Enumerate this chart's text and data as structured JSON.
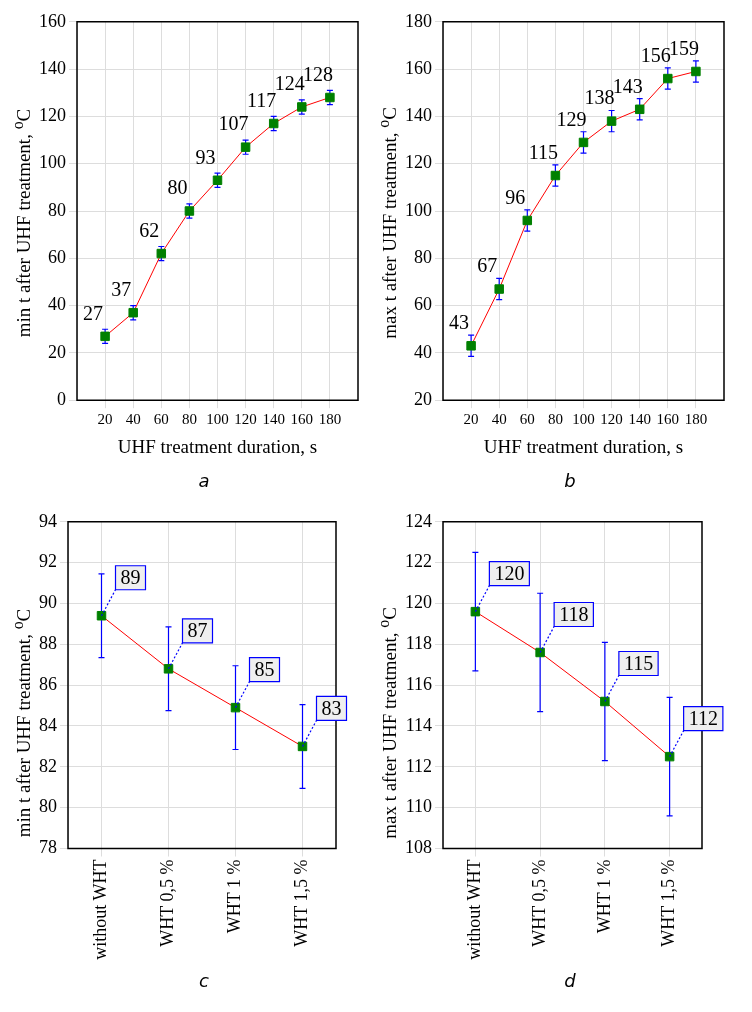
{
  "chart_data": [
    {
      "type": "line",
      "xlabel": "UHF treatment duration, s",
      "ylabel": "min t after UHF treatment, $^{o}$C",
      "annotations": [
        "a"
      ],
      "x": [
        20,
        40,
        60,
        80,
        100,
        120,
        140,
        160,
        180
      ],
      "xlim": [
        0,
        200
      ],
      "xticks": [
        20,
        40,
        60,
        80,
        100,
        120,
        140,
        160,
        180
      ],
      "ylim": [
        0,
        160
      ],
      "yticks": [
        0,
        20,
        40,
        60,
        80,
        100,
        120,
        140,
        160
      ],
      "grid": true,
      "marker": "square",
      "data_labels": true,
      "series": [
        {
          "color": "#ff0000",
          "colors": [
            "#008000",
            "#008000",
            "#008000",
            "#008000",
            "#008000",
            "#008000",
            "#008000",
            "#008000",
            "#008000"
          ],
          "values": [
            27,
            37,
            62,
            80,
            93,
            107,
            117,
            124,
            128
          ],
          "errors": [
            3,
            3,
            3,
            3,
            3,
            3,
            3,
            3,
            3
          ]
        }
      ]
    },
    {
      "type": "line",
      "xlabel": "UHF treatment duration, s",
      "ylabel": "max t after UHF treatment, $^{o}$C",
      "annotations": [
        "b"
      ],
      "x": [
        20,
        40,
        60,
        80,
        100,
        120,
        140,
        160,
        180
      ],
      "xlim": [
        0,
        200
      ],
      "xticks": [
        20,
        40,
        60,
        80,
        100,
        120,
        140,
        160,
        180
      ],
      "ylim": [
        20,
        180
      ],
      "yticks": [
        20,
        40,
        60,
        80,
        100,
        120,
        140,
        160,
        180
      ],
      "grid": true,
      "marker": "square",
      "data_labels": true,
      "series": [
        {
          "color": "#ff0000",
          "colors": [
            "#008000",
            "#008000",
            "#008000",
            "#008000",
            "#008000",
            "#008000",
            "#008000",
            "#008000",
            "#008000"
          ],
          "values": [
            43,
            67,
            96,
            115,
            129,
            138,
            143,
            156,
            159
          ],
          "errors": [
            4.5,
            4.5,
            4.5,
            4.5,
            4.5,
            4.5,
            4.5,
            4.5,
            4.5
          ]
        }
      ]
    },
    {
      "type": "line",
      "ylabel": "min t after UHF treatment, $^{o}$C",
      "annotations": [
        "c"
      ],
      "categories": [
        "without WHT",
        "WHT 0,5 %",
        "WHT 1 %",
        "WHT 1,5 %"
      ],
      "ylim": [
        78,
        94
      ],
      "yticks": [
        78,
        80,
        82,
        84,
        86,
        88,
        90,
        92,
        94
      ],
      "grid": true,
      "marker": "square",
      "series": [
        {
          "color": "#ff0000",
          "colors": [
            "#008000",
            "#008000",
            "#008000",
            "#008000"
          ],
          "values": [
            89.4,
            86.8,
            84.9,
            83.0
          ],
          "value_labels": [
            "89",
            "87",
            "85",
            "83"
          ],
          "errors": [
            2.05,
            2.05,
            2.05,
            2.05
          ]
        }
      ]
    },
    {
      "type": "line",
      "ylabel": "max t after UHF treatment, $^{o}$C",
      "annotations": [
        "d"
      ],
      "categories": [
        "without WHT",
        "WHT 0,5 %",
        "WHT 1 %",
        "WHT 1,5 %"
      ],
      "ylim": [
        108,
        124
      ],
      "yticks": [
        108,
        110,
        112,
        114,
        116,
        118,
        120,
        122,
        124
      ],
      "grid": true,
      "marker": "square",
      "series": [
        {
          "color": "#ff0000",
          "colors": [
            "#008000",
            "#008000",
            "#008000",
            "#008000"
          ],
          "values": [
            119.6,
            117.6,
            115.2,
            112.5
          ],
          "value_labels": [
            "120",
            "118",
            "115",
            "112"
          ],
          "errors": [
            2.9,
            2.9,
            2.9,
            2.9
          ]
        }
      ]
    }
  ]
}
